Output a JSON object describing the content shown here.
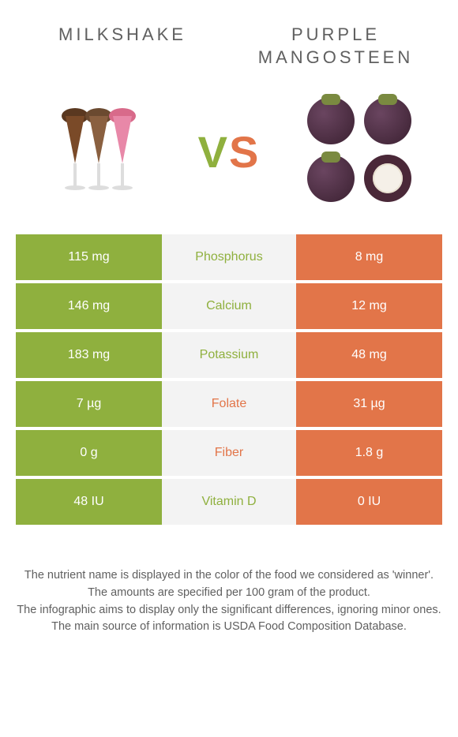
{
  "header": {
    "left": "MILKSHAKE",
    "right": "PURPLE MANGOSTEEN"
  },
  "vs": {
    "v": "V",
    "s": "S"
  },
  "colors": {
    "left": "#8fb03e",
    "right": "#e27549",
    "mid_bg": "#f3f3f3",
    "text": "#606060"
  },
  "rows": [
    {
      "nutrient": "Phosphorus",
      "left": "115 mg",
      "right": "8 mg",
      "winner": "left"
    },
    {
      "nutrient": "Calcium",
      "left": "146 mg",
      "right": "12 mg",
      "winner": "left"
    },
    {
      "nutrient": "Potassium",
      "left": "183 mg",
      "right": "48 mg",
      "winner": "left"
    },
    {
      "nutrient": "Folate",
      "left": "7 µg",
      "right": "31 µg",
      "winner": "right"
    },
    {
      "nutrient": "Fiber",
      "left": "0 g",
      "right": "1.8 g",
      "winner": "right"
    },
    {
      "nutrient": "Vitamin D",
      "left": "48 IU",
      "right": "0 IU",
      "winner": "left"
    }
  ],
  "notes": [
    "The nutrient name is displayed in the color of the food we considered as 'winner'.",
    "The amounts are specified per 100 gram of the product.",
    "The infographic aims to display only the significant differences, ignoring minor ones.",
    "The main source of information is USDA Food Composition Database."
  ]
}
